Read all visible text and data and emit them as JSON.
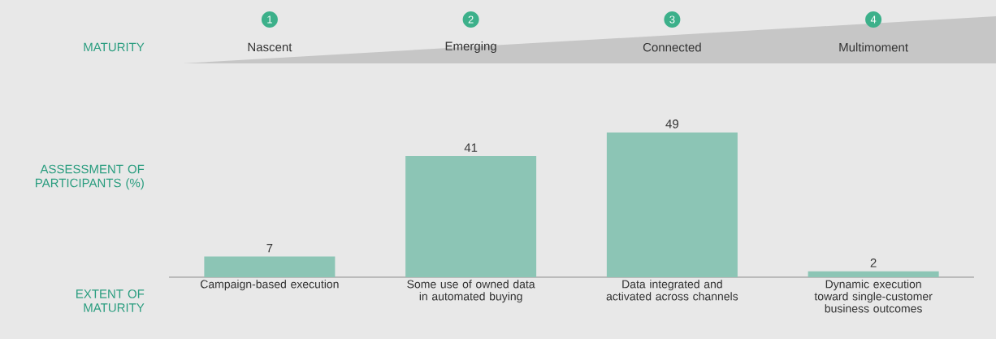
{
  "chart_data": {
    "type": "bar",
    "categories": [
      "Campaign-based execution",
      "Some use of owned data in automated buying",
      "Data integrated and activated across channels",
      "Dynamic execution toward single-customer business outcomes"
    ],
    "values": [
      7,
      41,
      49,
      2
    ],
    "color": "#8cc5b5",
    "data_labels": true,
    "ylabel": "ASSESSMENT OF PARTICIPANTS (%)",
    "xlabel": "EXTENT OF MATURITY",
    "annotations": [
      "MATURITY",
      "1",
      "Nascent",
      "2",
      "Emerging",
      "3",
      "Connected",
      "4",
      "Multimoment"
    ]
  }
}
